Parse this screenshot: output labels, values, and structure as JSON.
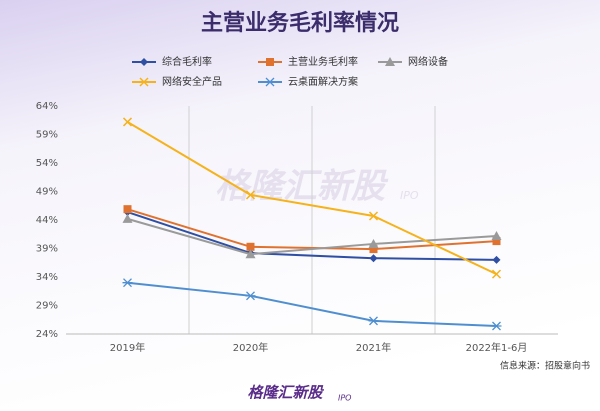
{
  "chart_data": {
    "type": "line",
    "title": "主营业务毛利率情况",
    "categories": [
      "2019年",
      "2020年",
      "2021年",
      "2022年1-6月"
    ],
    "series": [
      {
        "name": "综合毛利率",
        "color": "#2e4fa3",
        "marker": "diamond",
        "values": [
          45.4,
          38.2,
          37.3,
          37.0
        ]
      },
      {
        "name": "主营业务毛利率",
        "color": "#e0722f",
        "marker": "square",
        "values": [
          45.9,
          39.3,
          38.9,
          40.3
        ]
      },
      {
        "name": "网络设备",
        "color": "#9a9a9a",
        "marker": "triangle",
        "values": [
          44.2,
          38.0,
          39.8,
          41.2
        ]
      },
      {
        "name": "网络安全产品",
        "color": "#f5b21a",
        "marker": "x",
        "values": [
          61.2,
          48.4,
          44.7,
          34.5
        ]
      },
      {
        "name": "云桌面解决方案",
        "color": "#4f8fd0",
        "marker": "star",
        "values": [
          33.0,
          30.7,
          26.3,
          25.4
        ]
      }
    ],
    "ylim": [
      24,
      64
    ],
    "yticks": [
      {
        "value": 24,
        "label": "24%"
      },
      {
        "value": 29,
        "label": "29%"
      },
      {
        "value": 34,
        "label": "34%"
      },
      {
        "value": 39,
        "label": "39%"
      },
      {
        "value": 44,
        "label": "44%"
      },
      {
        "value": 49,
        "label": "49%"
      },
      {
        "value": 54,
        "label": "54%"
      },
      {
        "value": 59,
        "label": "59%"
      },
      {
        "value": 64,
        "label": "64%"
      }
    ],
    "grid": "vertical",
    "source": "信息来源：招股意向书",
    "watermark": "格隆汇新股",
    "watermark_sub": "IPO"
  }
}
